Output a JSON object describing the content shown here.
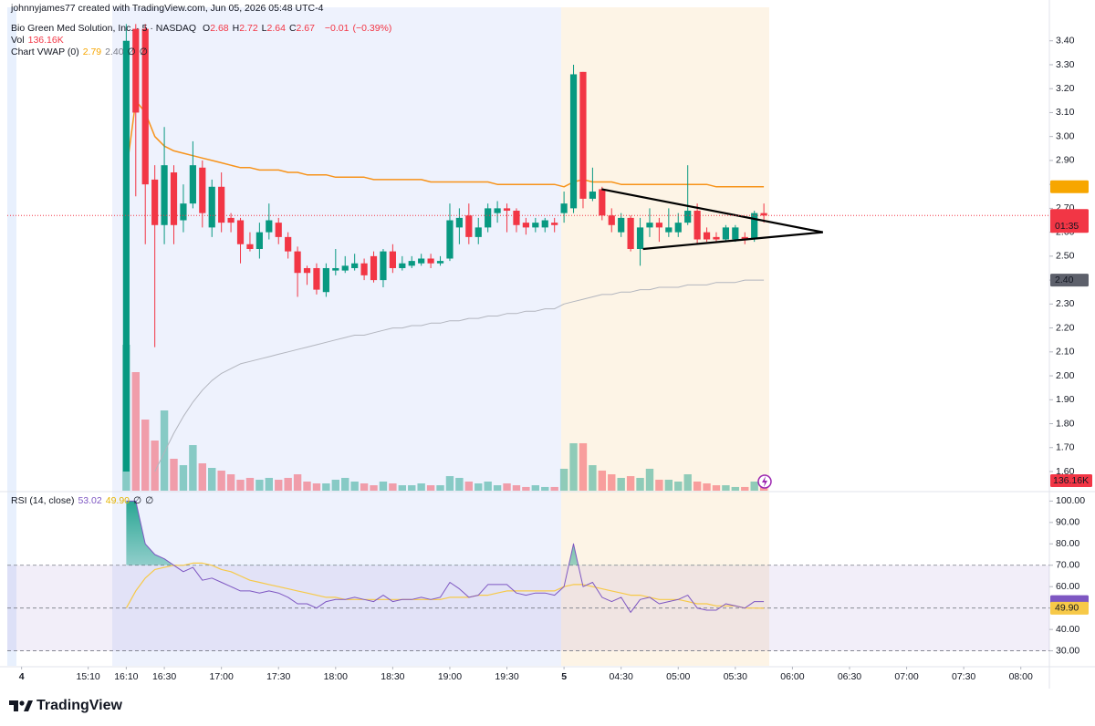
{
  "header": {
    "credit": "johnnyjames77 created with TradingView.com, Jun 05, 2026 05:48 UTC-4",
    "symbol": "Bio Green Med Solution, Inc. · 5 · NASDAQ",
    "ohlc": [
      {
        "key": "O",
        "value": 2.68
      },
      {
        "key": "H",
        "value": 2.72
      },
      {
        "key": "L",
        "value": 2.64
      },
      {
        "key": "C",
        "value": 2.67
      }
    ],
    "change": {
      "value": -0.01,
      "label": "−0.01"
    },
    "change_pct": {
      "value": -0.39,
      "label": "(−0.39%)"
    },
    "vol_legend": "Vol",
    "vwap_legend": "Chart VWAP (0)",
    "empty_mark": "∅"
  },
  "footer": "TradingView",
  "chart_data": {
    "type": "candlestick",
    "x": [
      0,
      1,
      2,
      3,
      4,
      5,
      6,
      7,
      8,
      9,
      10,
      11,
      12,
      13,
      14,
      15,
      16,
      17,
      18,
      19,
      20,
      21,
      22,
      23,
      24,
      25,
      26,
      27,
      28,
      29,
      30,
      31,
      32,
      33,
      34,
      35,
      36,
      37,
      38,
      39,
      40,
      41,
      42,
      43,
      44,
      45,
      46,
      47,
      48,
      49,
      50,
      51,
      52,
      53,
      54,
      55,
      56,
      57,
      58,
      59,
      60,
      61,
      62,
      63,
      64,
      65,
      66,
      67
    ],
    "open": [
      1.6,
      3.45,
      3.45,
      2.82,
      2.63,
      2.85,
      2.65,
      2.72,
      2.87,
      2.62,
      2.79,
      2.66,
      2.65,
      2.55,
      2.53,
      2.6,
      2.64,
      2.58,
      2.52,
      2.45,
      2.45,
      2.35,
      2.44,
      2.44,
      2.45,
      2.47,
      2.5,
      2.4,
      2.52,
      2.45,
      2.46,
      2.47,
      2.49,
      2.47,
      2.49,
      2.62,
      2.67,
      2.58,
      2.62,
      2.68,
      2.7,
      2.69,
      2.64,
      2.62,
      2.62,
      2.64,
      2.68,
      2.7,
      3.27,
      2.74,
      2.78,
      2.67,
      2.6,
      2.66,
      2.53,
      2.62,
      2.64,
      2.6,
      2.6,
      2.64,
      2.69,
      2.6,
      2.58,
      2.57,
      2.57,
      2.58,
      2.57,
      2.68
    ],
    "high": [
      3.47,
      3.47,
      3.47,
      2.88,
      3.04,
      2.88,
      2.8,
      2.98,
      2.9,
      2.82,
      2.85,
      2.68,
      2.66,
      2.6,
      2.64,
      2.72,
      2.66,
      2.6,
      2.54,
      2.46,
      2.47,
      2.47,
      2.53,
      2.5,
      2.51,
      2.49,
      2.52,
      2.53,
      2.55,
      2.5,
      2.5,
      2.51,
      2.51,
      2.5,
      2.72,
      2.7,
      2.72,
      2.66,
      2.72,
      2.73,
      2.72,
      2.7,
      2.66,
      2.66,
      2.66,
      2.66,
      2.77,
      3.3,
      3.27,
      2.87,
      2.79,
      2.7,
      2.68,
      2.67,
      2.66,
      2.7,
      2.66,
      2.7,
      2.68,
      2.88,
      2.72,
      2.62,
      2.6,
      2.63,
      2.63,
      2.6,
      2.69,
      2.72
    ],
    "low": [
      1.6,
      2.75,
      2.55,
      2.12,
      2.55,
      2.55,
      2.6,
      2.7,
      2.62,
      2.58,
      2.6,
      2.6,
      2.47,
      2.52,
      2.49,
      2.57,
      2.55,
      2.49,
      2.33,
      2.38,
      2.34,
      2.33,
      2.42,
      2.43,
      2.44,
      2.4,
      2.39,
      2.37,
      2.43,
      2.44,
      2.45,
      2.46,
      2.45,
      2.46,
      2.48,
      2.55,
      2.55,
      2.55,
      2.6,
      2.64,
      2.6,
      2.6,
      2.59,
      2.6,
      2.6,
      2.6,
      2.64,
      2.68,
      2.7,
      2.73,
      2.65,
      2.6,
      2.58,
      2.52,
      2.46,
      2.58,
      2.56,
      2.58,
      2.58,
      2.63,
      2.55,
      2.56,
      2.56,
      2.56,
      2.56,
      2.55,
      2.56,
      2.64
    ],
    "close": [
      3.4,
      3.1,
      2.8,
      2.63,
      2.88,
      2.63,
      2.72,
      2.88,
      2.68,
      2.79,
      2.64,
      2.64,
      2.55,
      2.53,
      2.6,
      2.65,
      2.58,
      2.52,
      2.43,
      2.43,
      2.36,
      2.45,
      2.45,
      2.46,
      2.47,
      2.42,
      2.4,
      2.52,
      2.45,
      2.47,
      2.48,
      2.49,
      2.47,
      2.48,
      2.65,
      2.66,
      2.58,
      2.62,
      2.7,
      2.7,
      2.69,
      2.63,
      2.62,
      2.64,
      2.65,
      2.63,
      2.72,
      3.26,
      2.74,
      2.77,
      2.67,
      2.63,
      2.66,
      2.53,
      2.62,
      2.64,
      2.62,
      2.62,
      2.64,
      2.69,
      2.57,
      2.57,
      2.57,
      2.62,
      2.62,
      2.57,
      2.68,
      2.67
    ],
    "volume": [
      1984000,
      1612000,
      967000,
      682000,
      1091000,
      434000,
      347000,
      620000,
      372000,
      310000,
      273000,
      223000,
      149000,
      174000,
      149000,
      174000,
      149000,
      174000,
      223000,
      124000,
      99000,
      99000,
      149000,
      174000,
      124000,
      99000,
      74000,
      124000,
      99000,
      74000,
      74000,
      99000,
      74000,
      74000,
      198000,
      174000,
      124000,
      99000,
      124000,
      74000,
      99000,
      74000,
      50000,
      74000,
      50000,
      50000,
      298000,
      645000,
      645000,
      347000,
      273000,
      223000,
      174000,
      198000,
      174000,
      298000,
      149000,
      149000,
      124000,
      223000,
      124000,
      99000,
      74000,
      74000,
      50000,
      50000,
      124000,
      136160
    ],
    "volume_label": {
      "value": 136160,
      "label": "136.16K",
      "color": "#f23645"
    },
    "up_color": "#089981",
    "down_color": "#f23645",
    "vwap": {
      "color": "#f7931a",
      "values": [
        2.85,
        3.15,
        3.1,
        3.0,
        2.96,
        2.94,
        2.93,
        2.92,
        2.91,
        2.9,
        2.89,
        2.88,
        2.87,
        2.87,
        2.86,
        2.86,
        2.86,
        2.85,
        2.85,
        2.84,
        2.84,
        2.84,
        2.83,
        2.83,
        2.83,
        2.83,
        2.82,
        2.82,
        2.82,
        2.82,
        2.82,
        2.82,
        2.81,
        2.81,
        2.81,
        2.81,
        2.81,
        2.81,
        2.81,
        2.8,
        2.8,
        2.8,
        2.8,
        2.8,
        2.8,
        2.8,
        2.79,
        2.81,
        2.82,
        2.81,
        2.81,
        2.81,
        2.8,
        2.8,
        2.8,
        2.8,
        2.8,
        2.8,
        2.8,
        2.8,
        2.8,
        2.8,
        2.79,
        2.79,
        2.79,
        2.79,
        2.79,
        2.79
      ]
    },
    "lower_band": {
      "color": "#b2b5be",
      "values": [
        null,
        null,
        null,
        1.6,
        1.68,
        1.76,
        1.83,
        1.89,
        1.94,
        1.98,
        2.01,
        2.03,
        2.05,
        2.06,
        2.07,
        2.08,
        2.09,
        2.1,
        2.11,
        2.12,
        2.13,
        2.14,
        2.15,
        2.16,
        2.17,
        2.17,
        2.18,
        2.19,
        2.2,
        2.2,
        2.21,
        2.21,
        2.22,
        2.22,
        2.23,
        2.23,
        2.24,
        2.24,
        2.25,
        2.25,
        2.26,
        2.26,
        2.27,
        2.27,
        2.28,
        2.28,
        2.3,
        2.31,
        2.32,
        2.33,
        2.34,
        2.34,
        2.35,
        2.35,
        2.36,
        2.36,
        2.37,
        2.37,
        2.37,
        2.38,
        2.38,
        2.38,
        2.39,
        2.39,
        2.39,
        2.4,
        2.4,
        2.4
      ]
    },
    "trendlines": [
      {
        "x": [
          49.95,
          73.2
        ],
        "y": [
          2.78,
          2.6
        ]
      },
      {
        "x": [
          54.3,
          73.2
        ],
        "y": [
          2.53,
          2.6
        ]
      }
    ],
    "trendline_color": "#000000",
    "price_labels": [
      {
        "value": 2.79,
        "color": "#f7a600",
        "text_color": "#131722"
      },
      {
        "value": 2.67,
        "color": "#f23645",
        "text_color": "#ffffff",
        "countdown": "01:35"
      },
      {
        "value": 2.4,
        "label": "2.40",
        "color": "#5d606b",
        "text_color": "#ffffff"
      }
    ],
    "ylim": [
      1.52,
      3.54
    ],
    "yticks": [
      {
        "value": 3.4,
        "label": "3.40"
      },
      {
        "value": 3.3,
        "label": "3.30"
      },
      {
        "value": 3.2,
        "label": "3.20"
      },
      {
        "value": 3.1,
        "label": "3.10"
      },
      {
        "value": 3.0,
        "label": "3.00"
      },
      {
        "value": 2.9,
        "label": "2.90"
      },
      {
        "value": 2.8,
        "label": "2.80"
      },
      {
        "value": 2.7,
        "label": "2.70"
      },
      {
        "value": 2.6,
        "label": "2.60"
      },
      {
        "value": 2.5,
        "label": "2.50"
      },
      {
        "value": 2.4,
        "label": "2.40"
      },
      {
        "value": 2.3,
        "label": "2.30"
      },
      {
        "value": 2.2,
        "label": "2.20"
      },
      {
        "value": 2.1,
        "label": "2.10"
      },
      {
        "value": 2.0,
        "label": "2.00"
      },
      {
        "value": 1.9,
        "label": "1.90"
      },
      {
        "value": 1.8,
        "label": "1.80"
      },
      {
        "value": 1.7,
        "label": "1.70"
      },
      {
        "value": 1.6,
        "label": "1.60"
      }
    ],
    "xlim": [
      -12.5,
      97
    ],
    "xticks": [
      {
        "value": -11,
        "label": "4"
      },
      {
        "value": -4,
        "label": "15:10"
      },
      {
        "value": 0,
        "label": "16:10"
      },
      {
        "value": 4,
        "label": "16:30"
      },
      {
        "value": 10,
        "label": "17:00"
      },
      {
        "value": 16,
        "label": "17:30"
      },
      {
        "value": 22,
        "label": "18:00"
      },
      {
        "value": 28,
        "label": "18:30"
      },
      {
        "value": 34,
        "label": "19:00"
      },
      {
        "value": 40,
        "label": "19:30"
      },
      {
        "value": 46,
        "label": "5"
      },
      {
        "value": 52,
        "label": "04:30"
      },
      {
        "value": 58,
        "label": "05:00"
      },
      {
        "value": 64,
        "label": "05:30"
      },
      {
        "value": 70,
        "label": "06:00"
      },
      {
        "value": 76,
        "label": "06:30"
      },
      {
        "value": 82,
        "label": "07:00"
      },
      {
        "value": 88,
        "label": "07:30"
      },
      {
        "value": 94,
        "label": "08:00"
      }
    ],
    "grid": false,
    "rsi": {
      "title": "RSI (14, close)",
      "series": [
        {
          "color": "#7e57c2",
          "values": [
            100,
            100,
            80,
            75,
            73,
            70,
            67,
            69,
            63,
            64,
            62,
            60,
            58,
            58,
            57,
            58,
            57,
            55,
            52,
            52,
            50,
            53,
            54,
            54,
            55,
            54,
            53,
            56,
            53,
            54,
            54,
            55,
            54,
            55,
            62,
            59,
            55,
            56,
            61,
            61,
            61,
            57,
            56,
            57,
            57,
            56,
            60,
            80,
            60,
            62,
            55,
            53,
            55,
            48,
            54,
            55,
            52,
            53,
            54,
            56,
            50,
            49,
            49,
            52,
            51,
            50,
            53,
            53.02
          ]
        },
        {
          "color": "#f7c948",
          "values": [
            50,
            58,
            64,
            68,
            69,
            70,
            70,
            71,
            71,
            70,
            68,
            67,
            65,
            63,
            62,
            61,
            60,
            59,
            58,
            57,
            56,
            55,
            55,
            54,
            54,
            54,
            54,
            54,
            54,
            54,
            54,
            54,
            54,
            54,
            55,
            55,
            55,
            56,
            56,
            57,
            58,
            58,
            58,
            58,
            58,
            58,
            60,
            61,
            61,
            60,
            59,
            58,
            57,
            56,
            56,
            55,
            54,
            54,
            54,
            53,
            52,
            52,
            51,
            51,
            51,
            50,
            50,
            49.9
          ]
        }
      ],
      "legend_values": [
        {
          "value": 53.02,
          "color": "#7e57c2",
          "text_color": "#ffffff"
        },
        {
          "value": 49.9,
          "label": "49.90",
          "color": "#f7c948",
          "text_color": "#131722"
        }
      ],
      "bands": [
        30,
        70
      ],
      "midline": 50,
      "overbought_color": "#089981",
      "ylim": [
        23,
        104
      ],
      "yticks": [
        {
          "value": 100,
          "label": "100.00"
        },
        {
          "value": 90,
          "label": "90.00"
        },
        {
          "value": 80,
          "label": "80.00"
        },
        {
          "value": 70,
          "label": "70.00"
        },
        {
          "value": 60,
          "label": "60.00"
        },
        {
          "value": 50,
          "label": "50.00"
        },
        {
          "value": 40,
          "label": "40.00"
        },
        {
          "value": 30,
          "label": "30.00"
        }
      ]
    }
  }
}
